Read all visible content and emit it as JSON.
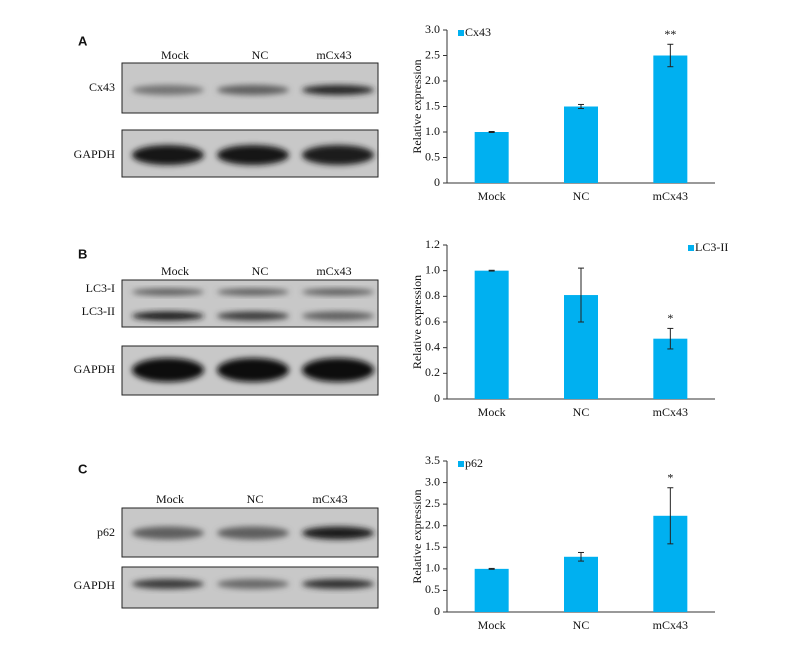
{
  "blots": [
    {
      "panel": "A",
      "lanes": [
        "Mock",
        "NC",
        "mCx43"
      ],
      "bands": [
        [
          "Cx43"
        ],
        [
          "GAPDH"
        ]
      ]
    },
    {
      "panel": "B",
      "lanes": [
        "Mock",
        "NC",
        "mCx43"
      ],
      "bands": [
        [
          "LC3-I",
          "LC3-II"
        ],
        [
          "GAPDH"
        ]
      ]
    },
    {
      "panel": "C",
      "lanes": [
        "Mock",
        "NC",
        "mCx43"
      ],
      "bands": [
        [
          "p62"
        ],
        [
          "GAPDH"
        ]
      ]
    }
  ],
  "chart_data": [
    {
      "type": "bar",
      "ylabel": "Relative expression",
      "categories": [
        "Mock",
        "NC",
        "mCx43"
      ],
      "series": [
        {
          "name": "Cx43",
          "color": "#00b0f0",
          "values": [
            1.0,
            1.5,
            2.5
          ],
          "errors": [
            0.01,
            0.04,
            0.22
          ]
        }
      ],
      "significance": [
        null,
        null,
        "**"
      ],
      "legend": "upper left",
      "ylim": [
        0,
        3
      ],
      "yticks": [
        0,
        0.5,
        {
          "value": 1,
          "label": "1.0"
        },
        1.5,
        {
          "value": 2,
          "label": "2.0"
        },
        2.5,
        {
          "value": 3,
          "label": "3.0"
        }
      ]
    },
    {
      "type": "bar",
      "ylabel": "Relative expression",
      "categories": [
        "Mock",
        "NC",
        "mCx43"
      ],
      "series": [
        {
          "name": "LC3-II",
          "color": "#00b0f0",
          "values": [
            1.0,
            0.81,
            0.47
          ],
          "errors": [
            0.003,
            0.21,
            0.08
          ]
        }
      ],
      "significance": [
        null,
        null,
        "*"
      ],
      "legend": "upper right",
      "ylim": [
        0,
        1.2
      ],
      "yticks": [
        0,
        0.2,
        0.4,
        0.6,
        0.8,
        {
          "value": 1,
          "label": "1.0"
        },
        1.2
      ]
    },
    {
      "type": "bar",
      "ylabel": "Relative expression",
      "categories": [
        "Mock",
        "NC",
        "mCx43"
      ],
      "series": [
        {
          "name": "p62",
          "color": "#00b0f0",
          "values": [
            1.0,
            1.28,
            2.23
          ],
          "errors": [
            0.01,
            0.1,
            0.65
          ]
        }
      ],
      "significance": [
        null,
        null,
        "*"
      ],
      "legend": "upper left",
      "ylim": [
        0,
        3.5
      ],
      "yticks": [
        0,
        0.5,
        {
          "value": 1,
          "label": "1.0"
        },
        1.5,
        {
          "value": 2,
          "label": "2.0"
        },
        2.5,
        {
          "value": 3,
          "label": "3.0"
        },
        3.5
      ]
    }
  ]
}
